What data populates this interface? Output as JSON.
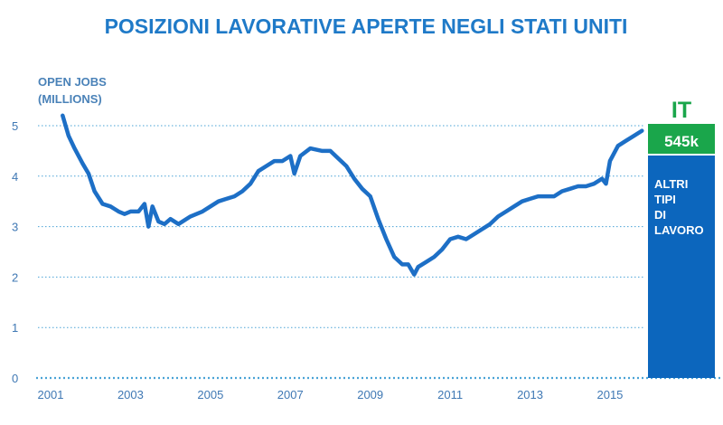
{
  "colors": {
    "title": "#1f7ac8",
    "line": "#1d6fc6",
    "grid": "#4aa3d6",
    "tick": "#3f78b4",
    "ylabel": "#4a82b8",
    "it_green": "#1aa64b",
    "bar_blue": "#0c66bd"
  },
  "chart_data": {
    "type": "line",
    "title": "POSIZIONI LAVORATIVE APERTE NEGLI STATI UNITI",
    "ylabel_lines": [
      "OPEN JOBS",
      "(MILLIONS)"
    ],
    "xlabel": "",
    "xlim": [
      2001,
      2016.2
    ],
    "ylim": [
      0,
      5
    ],
    "x_ticks": [
      "2001",
      "2003",
      "2005",
      "2007",
      "2009",
      "2011",
      "2013",
      "2015"
    ],
    "y_ticks": [
      "0",
      "1",
      "2",
      "3",
      "4",
      "5"
    ],
    "grid": "horizontal-dotted",
    "series": [
      {
        "x": [
          2001.3,
          2001.45,
          2001.6,
          2001.8,
          2001.95,
          2002.1,
          2002.3,
          2002.5,
          2002.7,
          2002.85,
          2003.0,
          2003.2,
          2003.35,
          2003.45,
          2003.55,
          2003.7,
          2003.85,
          2004.0,
          2004.2,
          2004.5,
          2004.8,
          2005.0,
          2005.2,
          2005.4,
          2005.6,
          2005.8,
          2006.0,
          2006.2,
          2006.4,
          2006.6,
          2006.8,
          2007.0,
          2007.1,
          2007.25,
          2007.5,
          2007.8,
          2008.0,
          2008.2,
          2008.4,
          2008.6,
          2008.8,
          2009.0,
          2009.2,
          2009.4,
          2009.6,
          2009.8,
          2009.95,
          2010.1,
          2010.2,
          2010.4,
          2010.6,
          2010.8,
          2011.0,
          2011.2,
          2011.4,
          2011.6,
          2011.8,
          2012.0,
          2012.2,
          2012.4,
          2012.6,
          2012.8,
          2013.0,
          2013.2,
          2013.4,
          2013.6,
          2013.8,
          2014.0,
          2014.2,
          2014.4,
          2014.6,
          2014.8,
          2014.9,
          2015.0,
          2015.2,
          2015.4,
          2015.6,
          2015.8
        ],
        "y": [
          5.2,
          4.8,
          4.55,
          4.25,
          4.05,
          3.7,
          3.45,
          3.4,
          3.3,
          3.25,
          3.3,
          3.3,
          3.45,
          3.0,
          3.4,
          3.1,
          3.05,
          3.15,
          3.05,
          3.2,
          3.3,
          3.4,
          3.5,
          3.55,
          3.6,
          3.7,
          3.85,
          4.1,
          4.2,
          4.3,
          4.3,
          4.4,
          4.05,
          4.4,
          4.55,
          4.5,
          4.5,
          4.35,
          4.2,
          3.95,
          3.75,
          3.6,
          3.15,
          2.75,
          2.4,
          2.25,
          2.25,
          2.05,
          2.2,
          2.3,
          2.4,
          2.55,
          2.75,
          2.8,
          2.75,
          2.85,
          2.95,
          3.05,
          3.2,
          3.3,
          3.4,
          3.5,
          3.55,
          3.6,
          3.6,
          3.6,
          3.7,
          3.75,
          3.8,
          3.8,
          3.85,
          3.95,
          3.85,
          4.3,
          4.6,
          4.7,
          4.8,
          4.9
        ]
      }
    ],
    "side_bar": {
      "segments": [
        {
          "label": "IT",
          "value": 545,
          "value_label": "545k",
          "color": "#1aa64b"
        },
        {
          "label": "ALTRI TIPI DI LAVORO",
          "label_lines": [
            "ALTRI",
            "TIPI",
            "DI",
            "LAVORO"
          ],
          "color": "#0c66bd"
        }
      ]
    }
  }
}
